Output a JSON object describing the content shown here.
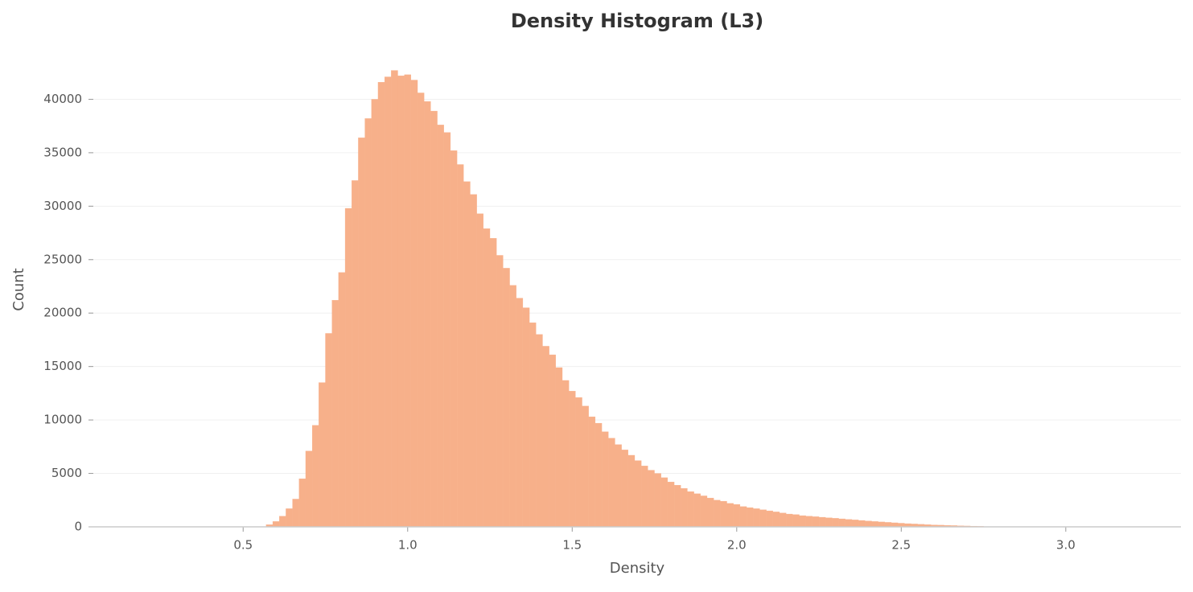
{
  "chart_data": {
    "type": "histogram",
    "title": "Density Histogram (L3)",
    "x_label": "Density",
    "y_label": "Count",
    "bins": [
      0.57,
      0.59,
      0.61,
      0.63,
      0.65,
      0.67,
      0.69,
      0.71,
      0.73,
      0.75,
      0.77,
      0.79,
      0.81,
      0.83,
      0.85,
      0.87,
      0.89,
      0.91,
      0.93,
      0.95,
      0.97,
      0.99,
      1.01,
      1.03,
      1.05,
      1.07,
      1.09,
      1.11,
      1.13,
      1.15,
      1.17,
      1.19,
      1.21,
      1.23,
      1.25,
      1.27,
      1.29,
      1.31,
      1.33,
      1.35,
      1.37,
      1.39,
      1.41,
      1.43,
      1.45,
      1.47,
      1.49,
      1.51,
      1.53,
      1.55,
      1.57,
      1.59,
      1.61,
      1.63,
      1.65,
      1.67,
      1.69,
      1.71,
      1.73,
      1.75,
      1.77,
      1.79,
      1.81,
      1.83,
      1.85,
      1.87,
      1.89,
      1.91,
      1.93,
      1.95,
      1.97,
      1.99,
      2.01,
      2.03,
      2.05,
      2.07,
      2.09,
      2.11,
      2.13,
      2.15,
      2.17,
      2.19,
      2.21,
      2.23,
      2.25,
      2.27,
      2.29,
      2.31,
      2.33,
      2.35,
      2.37,
      2.39,
      2.41,
      2.43,
      2.45,
      2.47,
      2.49,
      2.51,
      2.53,
      2.55,
      2.57,
      2.59,
      2.61,
      2.63,
      2.65,
      2.67,
      2.69,
      2.71,
      2.73,
      2.75
    ],
    "values": [
      200,
      500,
      1000,
      1700,
      2600,
      4500,
      7100,
      9500,
      13500,
      18100,
      21200,
      23800,
      29800,
      32400,
      36400,
      38200,
      40000,
      41600,
      42100,
      42700,
      42200,
      42300,
      41800,
      40600,
      39800,
      38900,
      37600,
      36900,
      35200,
      33900,
      32300,
      31100,
      29300,
      27900,
      27000,
      25400,
      24200,
      22600,
      21400,
      20500,
      19100,
      18000,
      16900,
      16100,
      14900,
      13700,
      12700,
      12100,
      11300,
      10300,
      9700,
      8900,
      8300,
      7700,
      7200,
      6700,
      6200,
      5700,
      5300,
      5000,
      4600,
      4200,
      3900,
      3600,
      3300,
      3100,
      2900,
      2700,
      2500,
      2400,
      2200,
      2100,
      1900,
      1800,
      1700,
      1600,
      1500,
      1400,
      1300,
      1200,
      1150,
      1050,
      1000,
      950,
      900,
      850,
      800,
      750,
      700,
      650,
      600,
      550,
      500,
      460,
      420,
      380,
      340,
      300,
      270,
      240,
      210,
      180,
      160,
      140,
      120,
      100,
      80,
      65,
      50
    ],
    "color": "#f7b08a",
    "xlim": [
      0.03,
      3.35
    ],
    "ylim": [
      0,
      45000
    ],
    "xticks": [
      0.5,
      {
        "value": 1,
        "label": "1.0"
      },
      1.5,
      {
        "value": 2,
        "label": "2.0"
      },
      2.5,
      {
        "value": 3,
        "label": "3.0"
      }
    ],
    "yticks": [
      0,
      5000,
      10000,
      15000,
      20000,
      25000,
      30000,
      35000,
      40000
    ],
    "grid": true
  }
}
